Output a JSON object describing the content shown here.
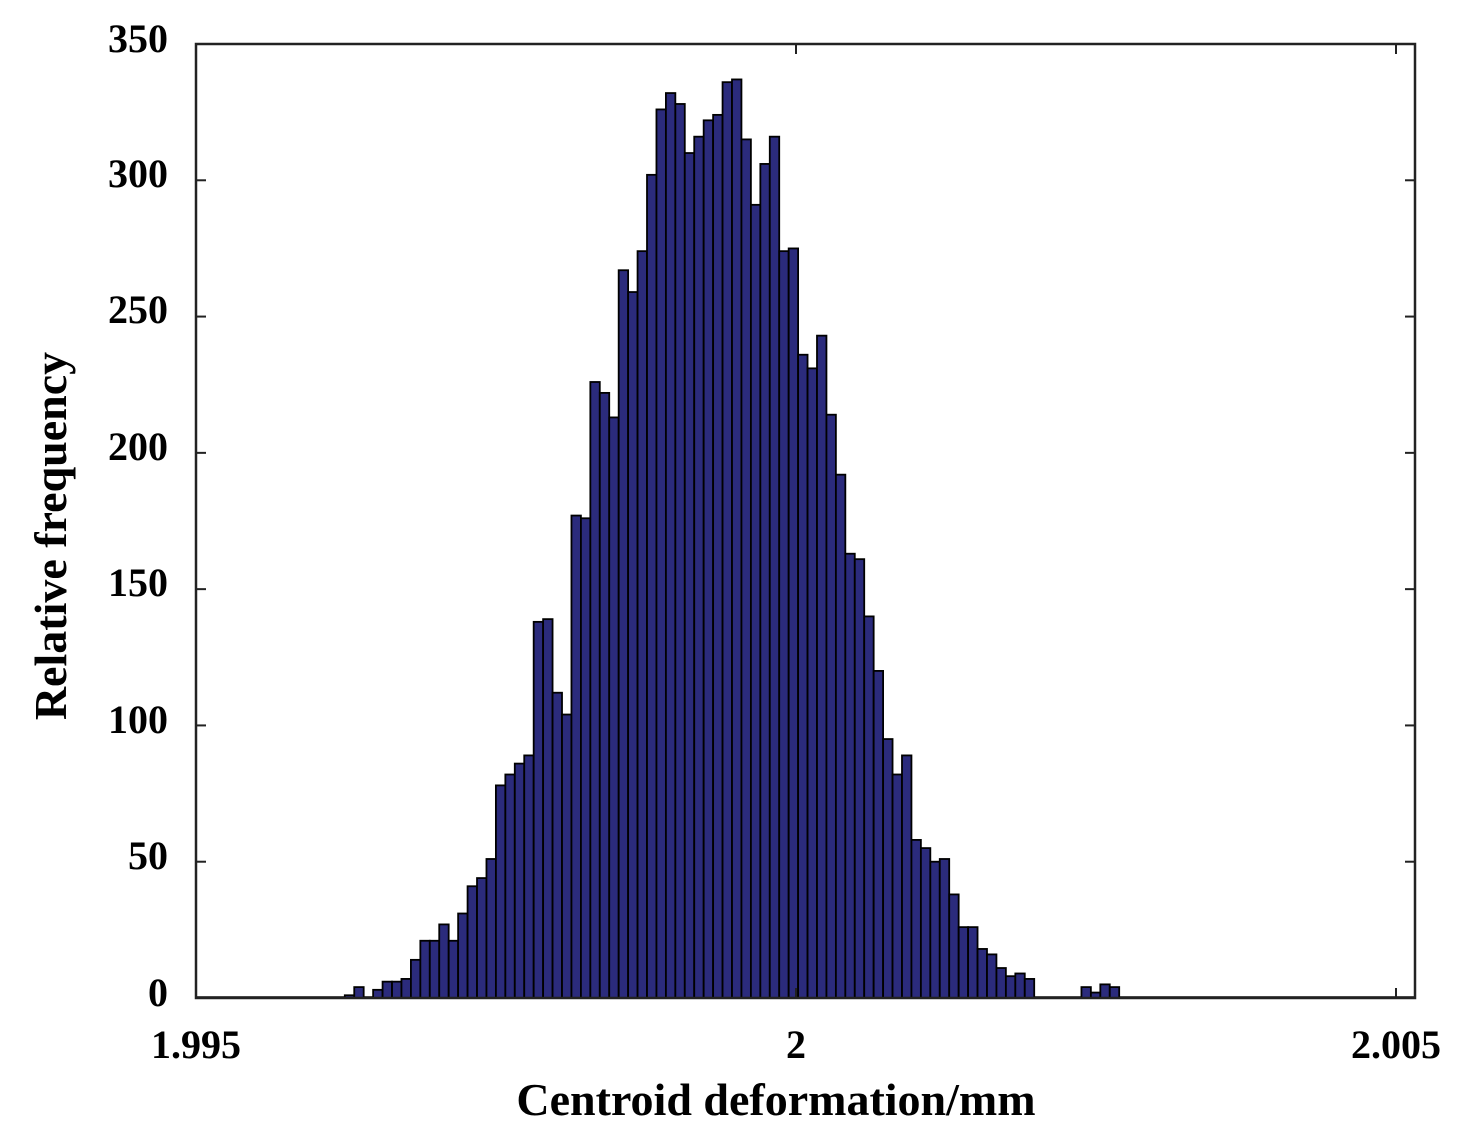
{
  "chart_data": {
    "type": "bar",
    "title": "",
    "xlabel": "Centroid deformation/mm",
    "ylabel": "Relative frequency",
    "xlim": [
      1.995,
      2.005
    ],
    "ylim": [
      0,
      350
    ],
    "x_ticks": [
      "1.995",
      "2",
      "2.005"
    ],
    "y_ticks": [
      "0",
      "50",
      "100",
      "150",
      "200",
      "250",
      "300",
      "350"
    ],
    "grid": false,
    "legend": "none",
    "bar_color": "#2b2b7c",
    "edge_color": "#000000",
    "bin_start": 1.99624,
    "bin_width": 7.87e-05,
    "values": [
      1,
      4,
      0,
      3,
      6,
      6,
      7,
      14,
      21,
      21,
      27,
      21,
      31,
      41,
      44,
      51,
      78,
      82,
      86,
      89,
      138,
      139,
      112,
      104,
      177,
      176,
      226,
      222,
      213,
      267,
      259,
      274,
      302,
      326,
      332,
      328,
      310,
      316,
      322,
      324,
      336,
      337,
      315,
      291,
      306,
      316,
      274,
      275,
      236,
      231,
      243,
      214,
      192,
      163,
      161,
      140,
      120,
      95,
      82,
      89,
      58,
      55,
      50,
      51,
      38,
      26,
      26,
      18,
      16,
      11,
      8,
      9,
      7,
      0,
      0,
      0,
      0,
      0,
      4,
      2,
      5,
      4
    ]
  }
}
